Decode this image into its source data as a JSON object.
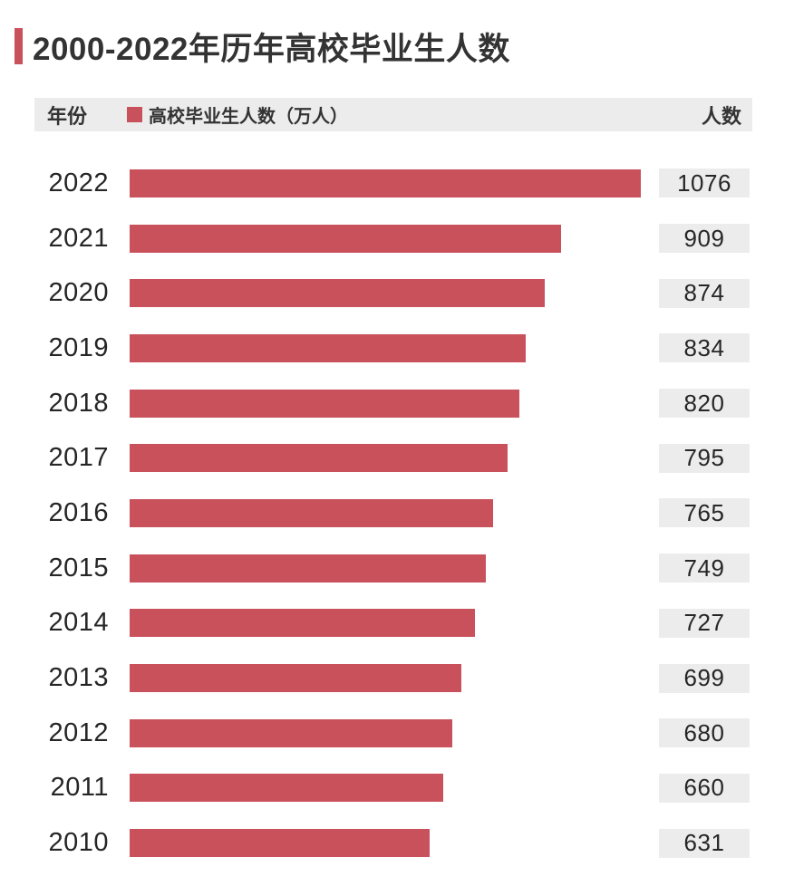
{
  "title": {
    "text": "2000-2022年历年高校毕业生人数"
  },
  "header": {
    "year_label": "年份",
    "legend_label": "高校毕业生人数（万人）",
    "value_label": "人数"
  },
  "colors": {
    "bar": "#C9515C",
    "accent": "#C9515C",
    "panel_bg": "#ececec",
    "title_text": "#333333"
  },
  "chart_data": {
    "type": "bar",
    "orientation": "horizontal",
    "title": "2000-2022年历年高校毕业生人数",
    "series_name": "高校毕业生人数（万人）",
    "legend_position": "top",
    "value_column_header": "人数",
    "category_column_header": "年份",
    "categories": [
      "2022",
      "2021",
      "2020",
      "2019",
      "2018",
      "2017",
      "2016",
      "2015",
      "2014",
      "2013",
      "2012",
      "2011",
      "2010"
    ],
    "values": [
      1076,
      909,
      874,
      834,
      820,
      795,
      765,
      749,
      727,
      699,
      680,
      660,
      631
    ],
    "unit": "万人",
    "max_value": 1076,
    "xlim": [
      0,
      1076
    ],
    "grid": false
  }
}
